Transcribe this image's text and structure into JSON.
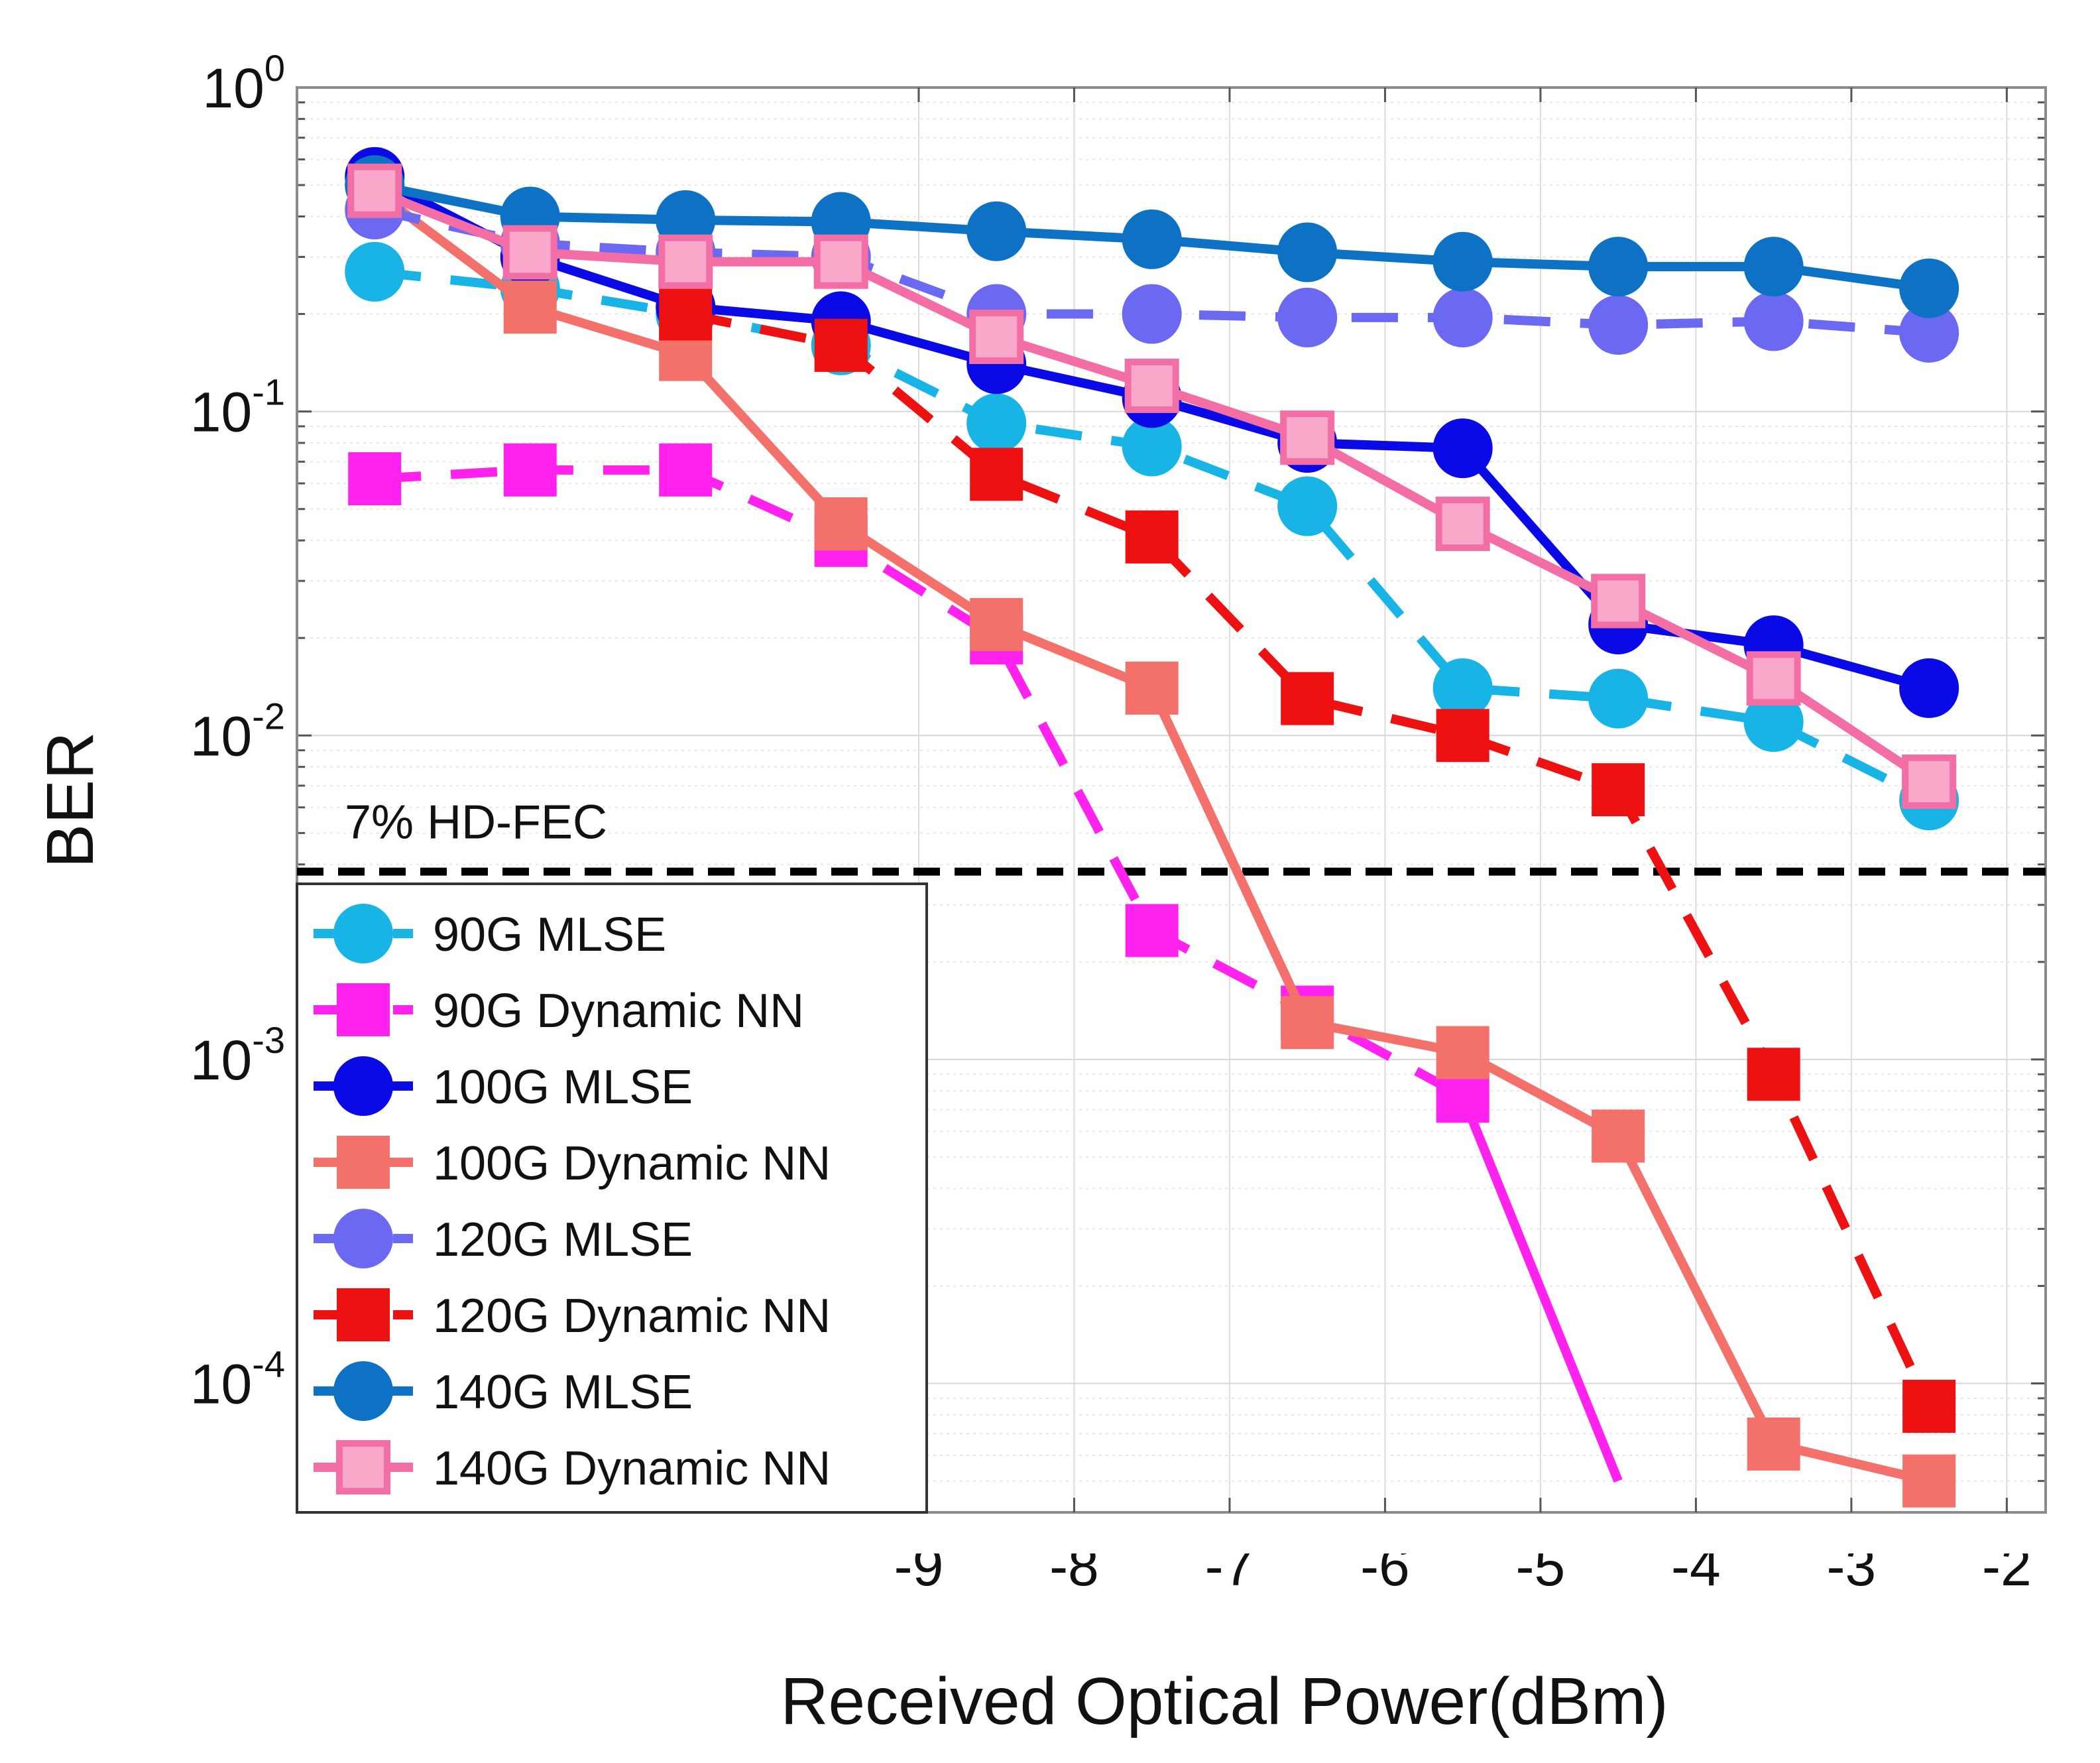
{
  "chart_data": {
    "type": "line",
    "title": "",
    "xlabel": "Received Optical Power(dBm)",
    "ylabel": "BER",
    "xlim": [
      -13,
      -1.75
    ],
    "xticks": [
      -9,
      -8,
      -7,
      -6,
      -5,
      -4,
      -3,
      -2
    ],
    "xtick_labels": [
      "-9",
      "-8",
      "-7",
      "-6",
      "-5",
      "-4",
      "-3",
      "-2"
    ],
    "yscale": "log",
    "ylim": [
      4e-05,
      1
    ],
    "yticks": [
      {
        "value": 1,
        "base": "10",
        "exp": "0"
      },
      {
        "value": 0.1,
        "base": "10",
        "exp": "-1"
      },
      {
        "value": 0.01,
        "base": "10",
        "exp": "-2"
      },
      {
        "value": 0.001,
        "base": "10",
        "exp": "-3"
      },
      {
        "value": 0.0001,
        "base": "10",
        "exp": "-4"
      }
    ],
    "grid": true,
    "legend_position": "bottom-left",
    "threshold": {
      "label": "7% HD-FEC",
      "value": 0.0038
    },
    "series": [
      {
        "name": "90G MLSE",
        "color": "#19b4e6",
        "marker": "circle",
        "line": "dashed",
        "x": [
          -12.5,
          -11.5,
          -10.5,
          -9.5,
          -8.5,
          -7.5,
          -6.5,
          -5.5,
          -4.5,
          -3.5,
          -2.5
        ],
        "y": [
          0.27,
          0.24,
          0.2,
          0.16,
          0.092,
          0.078,
          0.051,
          0.014,
          0.013,
          0.011,
          0.0063
        ]
      },
      {
        "name": "90G Dynamic NN",
        "color": "#ff22ee",
        "marker": "square",
        "line": "dashed-solid",
        "x": [
          -12.5,
          -11.5,
          -10.5,
          -9.5,
          -8.5,
          -7.5,
          -6.5,
          -5.5,
          -4.5
        ],
        "y": [
          0.062,
          0.066,
          0.066,
          0.04,
          0.02,
          0.0025,
          0.0014,
          0.00077,
          5e-05
        ]
      },
      {
        "name": "100G MLSE",
        "color": "#0a0ae6",
        "marker": "circle",
        "line": "solid",
        "x": [
          -12.5,
          -11.5,
          -10.5,
          -9.5,
          -8.5,
          -7.5,
          -6.5,
          -5.5,
          -4.5,
          -3.5,
          -2.5
        ],
        "y": [
          0.53,
          0.3,
          0.21,
          0.19,
          0.14,
          0.11,
          0.08,
          0.077,
          0.022,
          0.019,
          0.014
        ]
      },
      {
        "name": "100G Dynamic NN",
        "color": "#f4706a",
        "marker": "square",
        "line": "solid",
        "x": [
          -12.5,
          -11.5,
          -10.5,
          -9.5,
          -8.5,
          -7.5,
          -6.5,
          -5.5,
          -4.5,
          -3.5,
          -2.5
        ],
        "y": [
          0.48,
          0.21,
          0.15,
          0.045,
          0.022,
          0.014,
          0.0013,
          0.00105,
          0.00058,
          6.5e-05,
          5e-05
        ]
      },
      {
        "name": "120G MLSE",
        "color": "#6b68f2",
        "marker": "circle",
        "line": "dashed",
        "x": [
          -12.5,
          -11.5,
          -10.5,
          -9.5,
          -8.5,
          -7.5,
          -6.5,
          -5.5,
          -4.5,
          -3.5,
          -2.5
        ],
        "y": [
          0.42,
          0.33,
          0.31,
          0.3,
          0.2,
          0.2,
          0.195,
          0.195,
          0.185,
          0.19,
          0.175
        ]
      },
      {
        "name": "120G Dynamic NN",
        "color": "#ee1111",
        "marker": "square",
        "line": "dashed",
        "x": [
          -10.5,
          -9.5,
          -8.5,
          -7.5,
          -6.5,
          -5.5,
          -4.5,
          -3.5,
          -2.5
        ],
        "y": [
          0.2,
          0.16,
          0.064,
          0.041,
          0.013,
          0.01,
          0.0068,
          0.0009,
          8.5e-05
        ]
      },
      {
        "name": "140G MLSE",
        "color": "#0e72c4",
        "marker": "circle",
        "line": "solid",
        "x": [
          -12.5,
          -11.5,
          -10.5,
          -9.5,
          -8.5,
          -7.5,
          -6.5,
          -5.5,
          -4.5,
          -3.5,
          -2.5
        ],
        "y": [
          0.5,
          0.4,
          0.39,
          0.385,
          0.36,
          0.34,
          0.31,
          0.29,
          0.28,
          0.28,
          0.24
        ]
      },
      {
        "name": "140G Dynamic NN",
        "color": "#f46ea6",
        "marker": "square-hollow",
        "line": "solid",
        "x": [
          -12.5,
          -11.5,
          -10.5,
          -9.5,
          -8.5,
          -7.5,
          -6.5,
          -5.5,
          -4.5,
          -3.5,
          -2.5
        ],
        "y": [
          0.48,
          0.31,
          0.29,
          0.29,
          0.17,
          0.12,
          0.083,
          0.045,
          0.026,
          0.015,
          0.0072
        ]
      }
    ]
  }
}
